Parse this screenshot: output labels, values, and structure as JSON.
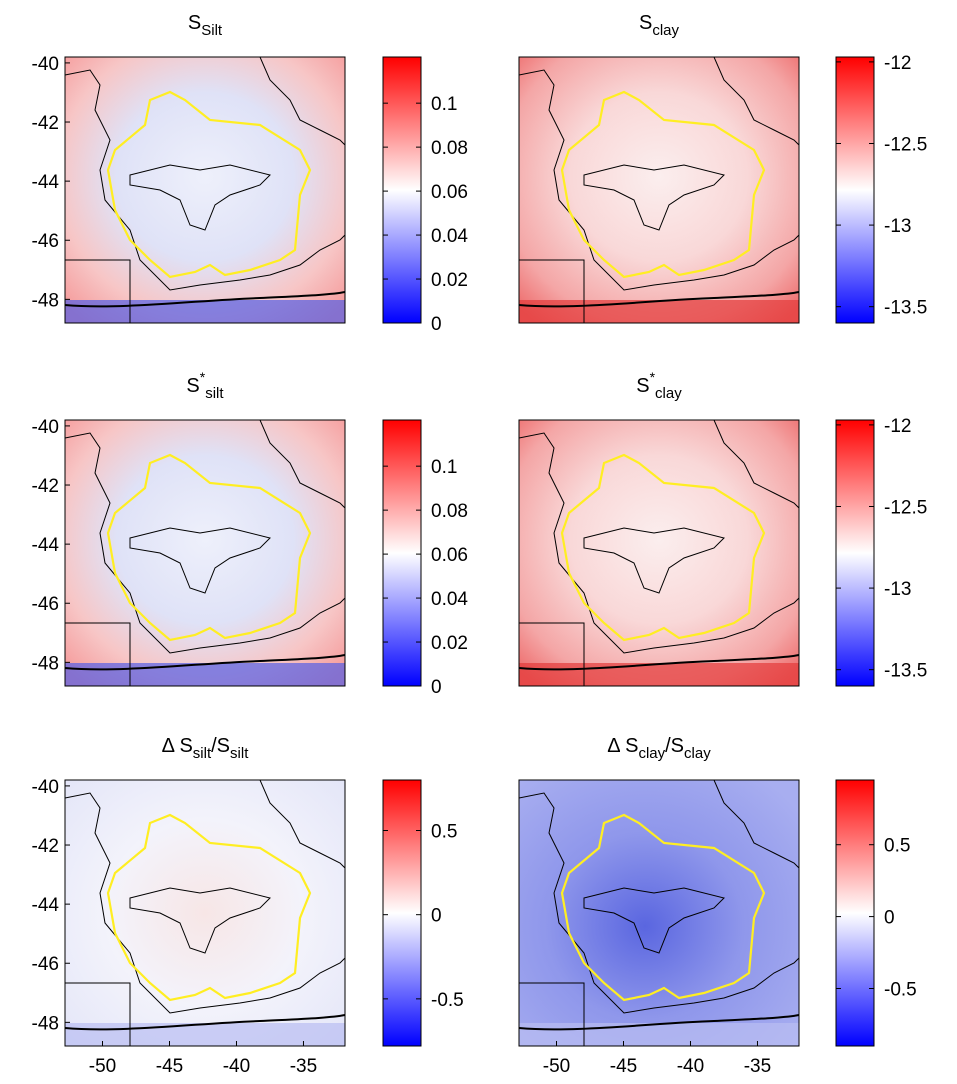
{
  "chart_data": [
    {
      "type": "map",
      "title": [
        {
          "text": "S"
        },
        {
          "text": "Silt",
          "sub": true
        }
      ],
      "xlim": [
        -52.8,
        -31.9
      ],
      "ylim": [
        -48.8,
        -39.8
      ],
      "yticks": [
        -48,
        -46,
        -44,
        -42,
        -40
      ],
      "xticks": [],
      "colorbar": {
        "lim": [
          0,
          0.121
        ],
        "ticks": [
          0,
          0.02,
          0.04,
          0.06,
          0.08,
          0.1
        ],
        "colormap": [
          "#0000ff",
          "#ffffff",
          "#ff0000"
        ]
      }
    },
    {
      "type": "map",
      "title": [
        {
          "text": "S"
        },
        {
          "text": "clay",
          "sub": true
        }
      ],
      "xlim": [
        -52.8,
        -31.9
      ],
      "ylim": [
        -48.8,
        -39.8
      ],
      "yticks": [],
      "xticks": [],
      "colorbar": {
        "lim": [
          -13.6,
          -11.97
        ],
        "ticks": [
          -13.5,
          -13,
          -12.5,
          -12
        ],
        "colormap": [
          "#0000ff",
          "#ffffff",
          "#ff0000"
        ]
      }
    },
    {
      "type": "map",
      "title": [
        {
          "text": "S"
        },
        {
          "text": "*",
          "sup": true
        },
        {
          "text": "silt",
          "sub": true
        }
      ],
      "xlim": [
        -52.8,
        -31.9
      ],
      "ylim": [
        -48.8,
        -39.8
      ],
      "yticks": [
        -48,
        -46,
        -44,
        -42,
        -40
      ],
      "xticks": [],
      "colorbar": {
        "lim": [
          0,
          0.121
        ],
        "ticks": [
          0,
          0.02,
          0.04,
          0.06,
          0.08,
          0.1
        ],
        "colormap": [
          "#0000ff",
          "#ffffff",
          "#ff0000"
        ]
      }
    },
    {
      "type": "map",
      "title": [
        {
          "text": "S"
        },
        {
          "text": "*",
          "sup": true
        },
        {
          "text": "clay",
          "sub": true
        }
      ],
      "xlim": [
        -52.8,
        -31.9
      ],
      "ylim": [
        -48.8,
        -39.8
      ],
      "yticks": [],
      "xticks": [],
      "colorbar": {
        "lim": [
          -13.6,
          -11.97
        ],
        "ticks": [
          -13.5,
          -13,
          -12.5,
          -12
        ],
        "colormap": [
          "#0000ff",
          "#ffffff",
          "#ff0000"
        ]
      }
    },
    {
      "type": "map",
      "title": [
        {
          "text": "Δ S"
        },
        {
          "text": "silt",
          "sub": true
        },
        {
          "text": "/S"
        },
        {
          "text": "silt",
          "sub": true
        }
      ],
      "xlim": [
        -52.8,
        -31.9
      ],
      "ylim": [
        -48.8,
        -39.8
      ],
      "yticks": [
        -48,
        -46,
        -44,
        -42,
        -40
      ],
      "xticks": [
        -50,
        -45,
        -40,
        -35
      ],
      "colorbar": {
        "lim": [
          -0.78,
          0.8
        ],
        "ticks": [
          -0.5,
          0,
          0.5
        ],
        "colormap": [
          "#0000ff",
          "#ffffff",
          "#ff0000"
        ]
      }
    },
    {
      "type": "map",
      "title": [
        {
          "text": "Δ S"
        },
        {
          "text": "clay",
          "sub": true
        },
        {
          "text": "/S"
        },
        {
          "text": "clay",
          "sub": true
        }
      ],
      "xlim": [
        -52.8,
        -31.9
      ],
      "ylim": [
        -48.8,
        -39.8
      ],
      "yticks": [],
      "xticks": [
        -50,
        -45,
        -40,
        -35
      ],
      "colorbar": {
        "lim": [
          -0.9,
          0.95
        ],
        "ticks": [
          -0.5,
          0,
          0.5
        ],
        "colormap": [
          "#0000ff",
          "#ffffff",
          "#ff0000"
        ]
      }
    }
  ]
}
